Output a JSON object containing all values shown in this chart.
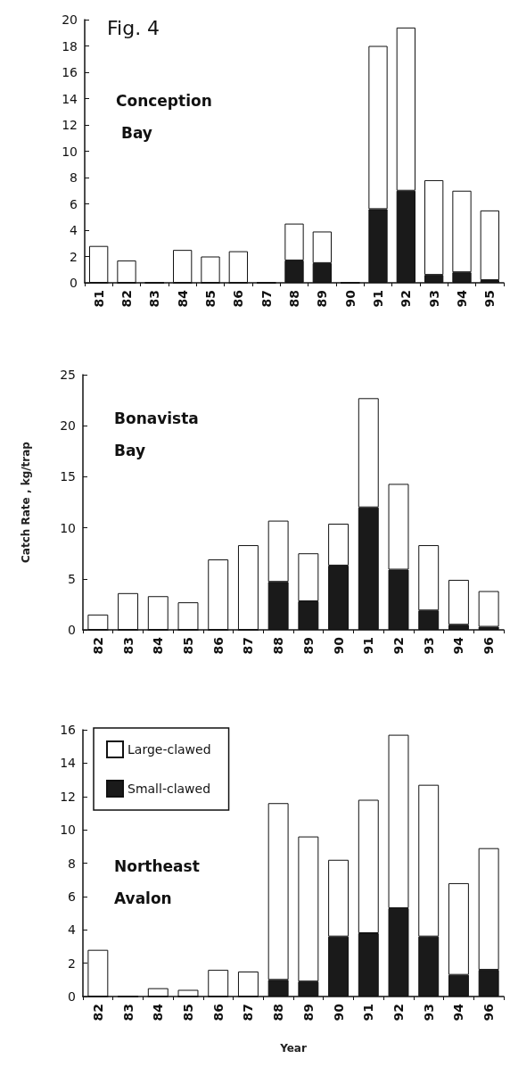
{
  "chart_data": [
    {
      "type": "bar",
      "title": "Conception Bay",
      "annotations": [
        "Fig. 4"
      ],
      "categories": [
        "81",
        "82",
        "83",
        "84",
        "85",
        "86",
        "87",
        "88",
        "89",
        "90",
        "91",
        "92",
        "93",
        "94",
        "95"
      ],
      "stacked": true,
      "ylim": [
        0,
        20
      ],
      "yticks": [
        0,
        2,
        4,
        6,
        8,
        10,
        12,
        14,
        16,
        18,
        20
      ],
      "legend": false,
      "series": [
        {
          "color": "#1a1a1a",
          "values": [
            0,
            0,
            0,
            0,
            0,
            0,
            0,
            1.7,
            1.5,
            0,
            5.6,
            7.0,
            0.6,
            0.8,
            0.2
          ]
        },
        {
          "color": "#ffffff",
          "values": [
            2.8,
            1.7,
            0,
            2.5,
            2.0,
            2.4,
            0,
            2.8,
            2.4,
            0,
            12.4,
            12.4,
            7.2,
            6.2,
            5.3
          ]
        }
      ]
    },
    {
      "type": "bar",
      "title": "Bonavista Bay",
      "ylabel": "Catch Rate , kg/trap",
      "categories": [
        "82",
        "83",
        "84",
        "85",
        "86",
        "87",
        "88",
        "89",
        "90",
        "91",
        "92",
        "93",
        "94",
        "96"
      ],
      "stacked": true,
      "ylim": [
        0,
        25
      ],
      "yticks": [
        0,
        5,
        10,
        15,
        20,
        25
      ],
      "legend": false,
      "series": [
        {
          "color": "#1a1a1a",
          "values": [
            0,
            0,
            0,
            0,
            0,
            0,
            4.7,
            2.8,
            6.3,
            12.0,
            5.9,
            1.9,
            0.5,
            0.3
          ]
        },
        {
          "color": "#ffffff",
          "values": [
            1.5,
            3.6,
            3.3,
            2.7,
            6.9,
            8.3,
            6.0,
            4.7,
            4.1,
            10.7,
            8.4,
            6.4,
            4.4,
            3.5
          ]
        }
      ]
    },
    {
      "type": "bar",
      "title": "Northeast Avalon",
      "xlabel": "Year",
      "categories": [
        "82",
        "83",
        "84",
        "85",
        "86",
        "87",
        "88",
        "89",
        "90",
        "91",
        "92",
        "93",
        "94",
        "96"
      ],
      "stacked": true,
      "ylim": [
        0,
        16
      ],
      "yticks": [
        0,
        2,
        4,
        6,
        8,
        10,
        12,
        14,
        16
      ],
      "legend": "top left",
      "series": [
        {
          "name": "Small-clawed",
          "color": "#1a1a1a",
          "values": [
            0,
            0,
            0,
            0,
            0,
            0,
            1.0,
            0.9,
            3.6,
            3.8,
            5.3,
            3.6,
            1.3,
            1.6
          ]
        },
        {
          "name": "Large-clawed",
          "color": "#ffffff",
          "values": [
            2.8,
            0,
            0.5,
            0.4,
            1.6,
            1.5,
            10.6,
            8.7,
            4.6,
            8.0,
            10.4,
            9.1,
            5.5,
            7.3
          ]
        }
      ]
    }
  ]
}
